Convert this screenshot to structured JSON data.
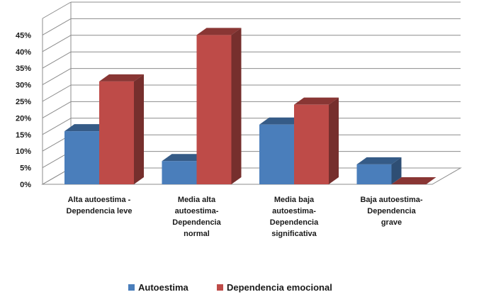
{
  "chart_data": {
    "type": "bar",
    "style": "3d-clustered-column",
    "categories": [
      [
        "Alta autoestima -",
        "Dependencia leve"
      ],
      [
        "Media  alta",
        "autoestima-",
        "Dependencia",
        "normal"
      ],
      [
        "Media  baja",
        "autoestima-",
        "Dependencia",
        "significativa"
      ],
      [
        "Baja autoestima-",
        "Dependencia",
        "grave"
      ]
    ],
    "series": [
      {
        "name": "Autoestima",
        "values": [
          16,
          7,
          18,
          6
        ],
        "color": "#4a7ebb"
      },
      {
        "name": "Dependencia emocional",
        "values": [
          31,
          45,
          24,
          0
        ],
        "color": "#be4b48"
      }
    ],
    "yticks": [
      "0%",
      "5%",
      "10%",
      "15%",
      "20%",
      "25%",
      "30%",
      "35%",
      "40%",
      "45%"
    ],
    "ylim": [
      0,
      45
    ],
    "grid": true,
    "legend": "bottom"
  }
}
